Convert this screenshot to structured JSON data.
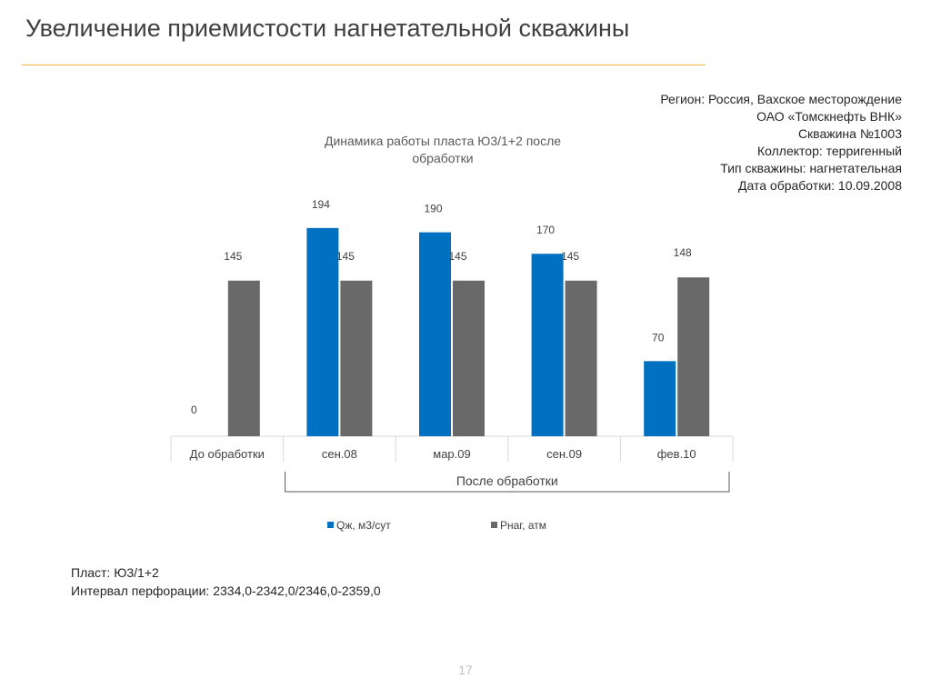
{
  "slide": {
    "title": "Увеличение приемистости нагнетательной скважины",
    "page_number": "17",
    "accent_color": "#f0b840"
  },
  "info": {
    "lines": [
      "Регион: Россия, Вахское месторождение",
      "ОАО «Томскнефть ВНК»",
      "Скважина  №1003",
      "Коллектор: терригенный",
      "Тип скважины: нагнетательная",
      "Дата обработки: 10.09.2008"
    ]
  },
  "notes": {
    "lines": [
      "Пласт: Ю3/1+2",
      "Интервал перфорации: 2334,0-2342,0/2346,0-2359,0"
    ]
  },
  "chart_data": {
    "type": "bar",
    "title": "Динамика работы пласта Ю3/1+2 после обработки",
    "categories": [
      "До обработки",
      "сен.08",
      "мар.09",
      "сен.09",
      "фев.10"
    ],
    "series": [
      {
        "name": "Qж, м3/сут",
        "values": [
          0,
          194,
          190,
          170,
          70
        ],
        "color": "#0070c0"
      },
      {
        "name": "Рнаг, атм",
        "values": [
          145,
          145,
          145,
          145,
          148
        ],
        "color": "#696969"
      }
    ],
    "group_label": "После обработки",
    "grouped_categories": [
      "сен.08",
      "мар.09",
      "сен.09",
      "фев.10"
    ],
    "ylim": [
      0,
      200
    ],
    "grid": false,
    "legend_position": "bottom",
    "data_labels": true
  }
}
